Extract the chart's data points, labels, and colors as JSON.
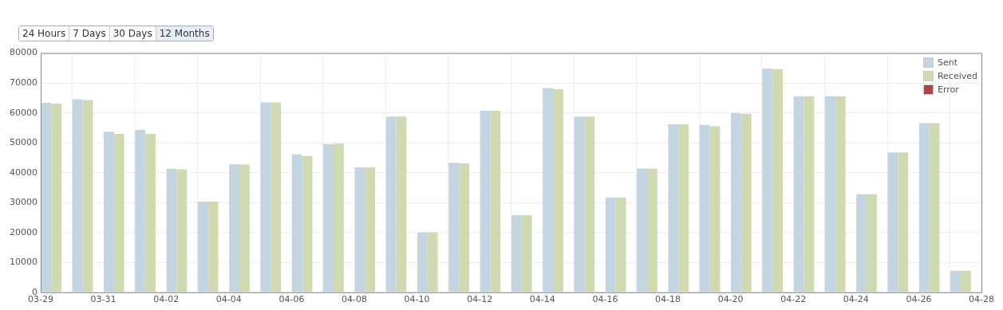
{
  "chart_data": {
    "type": "bar",
    "annotations": [
      "24 Hours",
      "7 Days",
      "30 Days",
      "12 Months"
    ],
    "x": [
      "--03-29",
      "--03-30",
      "--03-31",
      "--04-01",
      "--04-02",
      "--04-03",
      "--04-04",
      "--04-05",
      "--04-06",
      "--04-07",
      "--04-08",
      "--04-09",
      "--04-10",
      "--04-11",
      "--04-12",
      "--04-13",
      "--04-14",
      "--04-15",
      "--04-16",
      "--04-17",
      "--04-18",
      "--04-19",
      "--04-20",
      "--04-21",
      "--04-22",
      "--04-23",
      "--04-24",
      "--04-25",
      "--04-26",
      "--04-27"
    ],
    "series": [
      {
        "name": "Sent",
        "color": "#c3d5e0",
        "values": [
          63400,
          64600,
          53700,
          54300,
          41300,
          30300,
          42800,
          63500,
          46100,
          49500,
          41800,
          58800,
          20000,
          43300,
          60700,
          25800,
          68300,
          58800,
          31700,
          41400,
          56200,
          56000,
          59900,
          74800,
          65600,
          65600,
          32800,
          46800,
          56600,
          7200
        ]
      },
      {
        "name": "Received",
        "color": "#cfdab0",
        "values": [
          63100,
          64300,
          53000,
          53000,
          41100,
          30300,
          42700,
          63500,
          45600,
          49700,
          41800,
          58800,
          20000,
          43100,
          60700,
          25800,
          68000,
          58800,
          31700,
          41400,
          56200,
          55600,
          59700,
          74600,
          65600,
          65600,
          32800,
          46800,
          56600,
          7200
        ]
      },
      {
        "name": "Error",
        "color": "#b04444",
        "values": [
          0,
          0,
          0,
          0,
          0,
          0,
          0,
          0,
          0,
          0,
          0,
          0,
          0,
          0,
          0,
          0,
          0,
          0,
          0,
          0,
          0,
          0,
          0,
          0,
          0,
          0,
          0,
          0,
          0,
          0
        ]
      }
    ],
    "xlim": [
      "--03-29",
      "--04-28"
    ],
    "xticks": [
      {
        "value": "--03-29",
        "label": "03-29"
      },
      {
        "value": "--03-31",
        "label": "03-31"
      },
      {
        "value": "--04-02",
        "label": "04-02"
      },
      {
        "value": "--04-04",
        "label": "04-04"
      },
      {
        "value": "--04-06",
        "label": "04-06"
      },
      {
        "value": "--04-08",
        "label": "04-08"
      },
      {
        "value": "--04-10",
        "label": "04-10"
      },
      {
        "value": "--04-12",
        "label": "04-12"
      },
      {
        "value": "--04-14",
        "label": "04-14"
      },
      {
        "value": "--04-16",
        "label": "04-16"
      },
      {
        "value": "--04-18",
        "label": "04-18"
      },
      {
        "value": "--04-20",
        "label": "04-20"
      },
      {
        "value": "--04-22",
        "label": "04-22"
      },
      {
        "value": "--04-24",
        "label": "04-24"
      },
      {
        "value": "--04-26",
        "label": "04-26"
      },
      {
        "value": "--04-28",
        "label": "04-28"
      }
    ],
    "ylim": [
      0,
      80000
    ],
    "yticks": [
      0,
      10000,
      20000,
      30000,
      40000,
      50000,
      60000,
      70000,
      80000
    ],
    "grid": true,
    "legend": "top right"
  }
}
